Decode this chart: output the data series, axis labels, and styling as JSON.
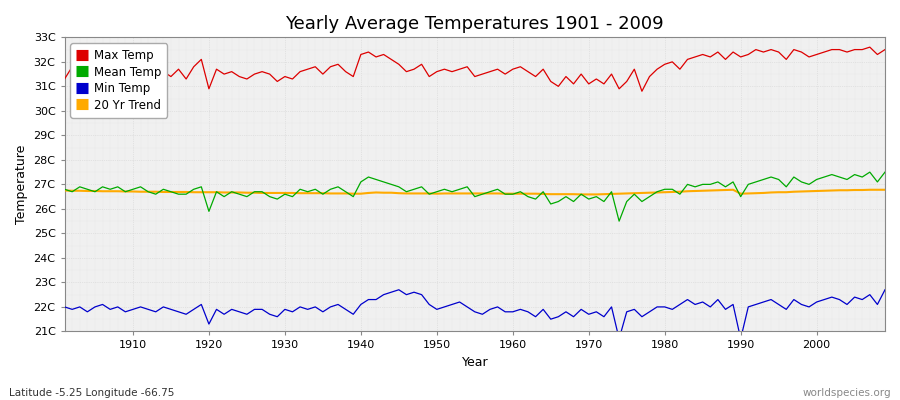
{
  "title": "Yearly Average Temperatures 1901 - 2009",
  "xlabel": "Year",
  "ylabel": "Temperature",
  "subtitle_left": "Latitude -5.25 Longitude -66.75",
  "subtitle_right": "worldspecies.org",
  "bg_color": "#ffffff",
  "plot_bg_color": "#f0f0f0",
  "years": [
    1901,
    1902,
    1903,
    1904,
    1905,
    1906,
    1907,
    1908,
    1909,
    1910,
    1911,
    1912,
    1913,
    1914,
    1915,
    1916,
    1917,
    1918,
    1919,
    1920,
    1921,
    1922,
    1923,
    1924,
    1925,
    1926,
    1927,
    1928,
    1929,
    1930,
    1931,
    1932,
    1933,
    1934,
    1935,
    1936,
    1937,
    1938,
    1939,
    1940,
    1941,
    1942,
    1943,
    1944,
    1945,
    1946,
    1947,
    1948,
    1949,
    1950,
    1951,
    1952,
    1953,
    1954,
    1955,
    1956,
    1957,
    1958,
    1959,
    1960,
    1961,
    1962,
    1963,
    1964,
    1965,
    1966,
    1967,
    1968,
    1969,
    1970,
    1971,
    1972,
    1973,
    1974,
    1975,
    1976,
    1977,
    1978,
    1979,
    1980,
    1981,
    1982,
    1983,
    1984,
    1985,
    1986,
    1987,
    1988,
    1989,
    1990,
    1991,
    1992,
    1993,
    1994,
    1995,
    1996,
    1997,
    1998,
    1999,
    2000,
    2001,
    2002,
    2003,
    2004,
    2005,
    2006,
    2007,
    2008,
    2009
  ],
  "max_temp": [
    31.3,
    31.8,
    31.5,
    31.6,
    32.0,
    31.9,
    31.7,
    31.8,
    31.9,
    31.7,
    31.8,
    31.9,
    32.0,
    31.6,
    31.4,
    31.7,
    31.3,
    31.8,
    32.1,
    30.9,
    31.7,
    31.5,
    31.6,
    31.4,
    31.3,
    31.5,
    31.6,
    31.5,
    31.2,
    31.4,
    31.3,
    31.6,
    31.7,
    31.8,
    31.5,
    31.8,
    31.9,
    31.6,
    31.4,
    32.3,
    32.4,
    32.2,
    32.3,
    32.1,
    31.9,
    31.6,
    31.7,
    31.9,
    31.4,
    31.6,
    31.7,
    31.6,
    31.7,
    31.8,
    31.4,
    31.5,
    31.6,
    31.7,
    31.5,
    31.7,
    31.8,
    31.6,
    31.4,
    31.7,
    31.2,
    31.0,
    31.4,
    31.1,
    31.5,
    31.1,
    31.3,
    31.1,
    31.5,
    30.9,
    31.2,
    31.7,
    30.8,
    31.4,
    31.7,
    31.9,
    32.0,
    31.7,
    32.1,
    32.2,
    32.3,
    32.2,
    32.4,
    32.1,
    32.4,
    32.2,
    32.3,
    32.5,
    32.4,
    32.5,
    32.4,
    32.1,
    32.5,
    32.4,
    32.2,
    32.3,
    32.4,
    32.5,
    32.5,
    32.4,
    32.5,
    32.5,
    32.6,
    32.3,
    32.5
  ],
  "mean_temp": [
    26.8,
    26.7,
    26.9,
    26.8,
    26.7,
    26.9,
    26.8,
    26.9,
    26.7,
    26.8,
    26.9,
    26.7,
    26.6,
    26.8,
    26.7,
    26.6,
    26.6,
    26.8,
    26.9,
    25.9,
    26.7,
    26.5,
    26.7,
    26.6,
    26.5,
    26.7,
    26.7,
    26.5,
    26.4,
    26.6,
    26.5,
    26.8,
    26.7,
    26.8,
    26.6,
    26.8,
    26.9,
    26.7,
    26.5,
    27.1,
    27.3,
    27.2,
    27.1,
    27.0,
    26.9,
    26.7,
    26.8,
    26.9,
    26.6,
    26.7,
    26.8,
    26.7,
    26.8,
    26.9,
    26.5,
    26.6,
    26.7,
    26.8,
    26.6,
    26.6,
    26.7,
    26.5,
    26.4,
    26.7,
    26.2,
    26.3,
    26.5,
    26.3,
    26.6,
    26.4,
    26.5,
    26.3,
    26.7,
    25.5,
    26.3,
    26.6,
    26.3,
    26.5,
    26.7,
    26.8,
    26.8,
    26.6,
    27.0,
    26.9,
    27.0,
    27.0,
    27.1,
    26.9,
    27.1,
    26.5,
    27.0,
    27.1,
    27.2,
    27.3,
    27.2,
    26.9,
    27.3,
    27.1,
    27.0,
    27.2,
    27.3,
    27.4,
    27.3,
    27.2,
    27.4,
    27.3,
    27.5,
    27.1,
    27.5
  ],
  "min_temp": [
    22.0,
    21.9,
    22.0,
    21.8,
    22.0,
    22.1,
    21.9,
    22.0,
    21.8,
    21.9,
    22.0,
    21.9,
    21.8,
    22.0,
    21.9,
    21.8,
    21.7,
    21.9,
    22.1,
    21.3,
    21.9,
    21.7,
    21.9,
    21.8,
    21.7,
    21.9,
    21.9,
    21.7,
    21.6,
    21.9,
    21.8,
    22.0,
    21.9,
    22.0,
    21.8,
    22.0,
    22.1,
    21.9,
    21.7,
    22.1,
    22.3,
    22.3,
    22.5,
    22.6,
    22.7,
    22.5,
    22.6,
    22.5,
    22.1,
    21.9,
    22.0,
    22.1,
    22.2,
    22.0,
    21.8,
    21.7,
    21.9,
    22.0,
    21.8,
    21.8,
    21.9,
    21.8,
    21.6,
    21.9,
    21.5,
    21.6,
    21.8,
    21.6,
    21.9,
    21.7,
    21.8,
    21.6,
    22.0,
    20.7,
    21.8,
    21.9,
    21.6,
    21.8,
    22.0,
    22.0,
    21.9,
    22.1,
    22.3,
    22.1,
    22.2,
    22.0,
    22.3,
    21.9,
    22.1,
    20.7,
    22.0,
    22.1,
    22.2,
    22.3,
    22.1,
    21.9,
    22.3,
    22.1,
    22.0,
    22.2,
    22.3,
    22.4,
    22.3,
    22.1,
    22.4,
    22.3,
    22.5,
    22.1,
    22.7
  ],
  "trend_20yr": [
    26.75,
    26.74,
    26.74,
    26.73,
    26.73,
    26.72,
    26.72,
    26.72,
    26.71,
    26.71,
    26.7,
    26.7,
    26.7,
    26.69,
    26.69,
    26.69,
    26.69,
    26.68,
    26.68,
    26.68,
    26.68,
    26.67,
    26.67,
    26.67,
    26.66,
    26.66,
    26.65,
    26.65,
    26.65,
    26.65,
    26.65,
    26.64,
    26.64,
    26.64,
    26.64,
    26.63,
    26.63,
    26.63,
    26.62,
    26.62,
    26.65,
    26.67,
    26.66,
    26.66,
    26.64,
    26.63,
    26.63,
    26.63,
    26.63,
    26.62,
    26.63,
    26.63,
    26.63,
    26.63,
    26.63,
    26.63,
    26.63,
    26.63,
    26.62,
    26.62,
    26.62,
    26.62,
    26.62,
    26.61,
    26.6,
    26.6,
    26.6,
    26.6,
    26.59,
    26.59,
    26.59,
    26.6,
    26.61,
    26.62,
    26.63,
    26.64,
    26.65,
    26.66,
    26.67,
    26.68,
    26.69,
    26.7,
    26.72,
    26.73,
    26.74,
    26.75,
    26.76,
    26.77,
    26.78,
    26.62,
    26.63,
    26.64,
    26.65,
    26.67,
    26.68,
    26.68,
    26.7,
    26.71,
    26.72,
    26.73,
    26.74,
    26.75,
    26.76,
    26.76,
    26.77,
    26.77,
    26.78,
    26.78,
    26.78
  ],
  "ylim": [
    21.0,
    33.0
  ],
  "yticks": [
    21,
    22,
    23,
    24,
    25,
    26,
    27,
    28,
    29,
    30,
    31,
    32,
    33
  ],
  "ytick_labels": [
    "21C",
    "22C",
    "23C",
    "24C",
    "25C",
    "26C",
    "27C",
    "28C",
    "29C",
    "30C",
    "31C",
    "32C",
    "33C"
  ],
  "xticks": [
    1910,
    1920,
    1930,
    1940,
    1950,
    1960,
    1970,
    1980,
    1990,
    2000
  ],
  "max_color": "#dd0000",
  "mean_color": "#00aa00",
  "min_color": "#0000cc",
  "trend_color": "#ffaa00",
  "legend_labels": [
    "Max Temp",
    "Mean Temp",
    "Min Temp",
    "20 Yr Trend"
  ]
}
